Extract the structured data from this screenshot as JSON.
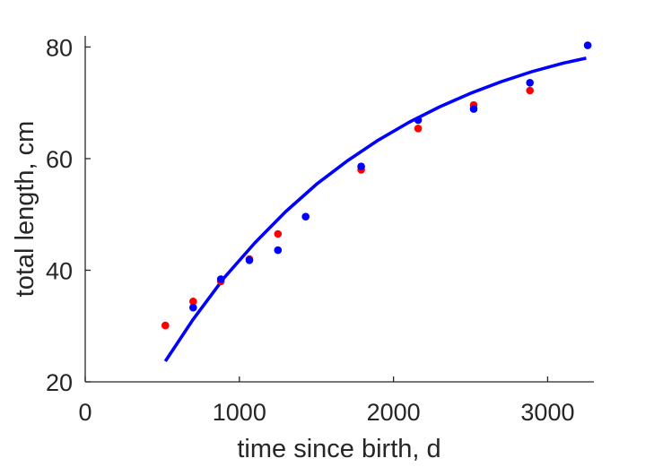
{
  "chart_data": {
    "type": "scatter",
    "title": "",
    "xlabel": "time since birth, d",
    "ylabel": "total length, cm",
    "xlim": [
      0,
      3300
    ],
    "ylim": [
      20,
      82
    ],
    "xticks": [
      0,
      1000,
      2000,
      3000
    ],
    "yticks": [
      20,
      40,
      60,
      80
    ],
    "grid": false,
    "legend": "none",
    "series": [
      {
        "kind": "points",
        "color": "#ff0000",
        "x": [
          520,
          700,
          880,
          1065,
          1250,
          1790,
          2160,
          2520,
          2885
        ],
        "y": [
          30.1,
          34.4,
          38.0,
          42.0,
          46.5,
          58.0,
          65.4,
          69.6,
          72.2
        ]
      },
      {
        "kind": "points",
        "color": "#0000ff",
        "x": [
          700,
          880,
          1065,
          1250,
          1430,
          1790,
          2160,
          2520,
          2885,
          3260
        ],
        "y": [
          33.3,
          38.4,
          41.8,
          43.6,
          49.6,
          58.6,
          66.9,
          68.9,
          73.6,
          80.3
        ]
      },
      {
        "kind": "line",
        "color": "#0000ff",
        "x": [
          520,
          700,
          900,
          1100,
          1300,
          1500,
          1700,
          1900,
          2100,
          2300,
          2500,
          2700,
          2900,
          3100,
          3250
        ],
        "y": [
          23.7,
          31.2,
          38.6,
          44.9,
          50.5,
          55.4,
          59.6,
          63.3,
          66.5,
          69.3,
          71.7,
          73.8,
          75.6,
          77.1,
          78.0
        ]
      }
    ]
  }
}
